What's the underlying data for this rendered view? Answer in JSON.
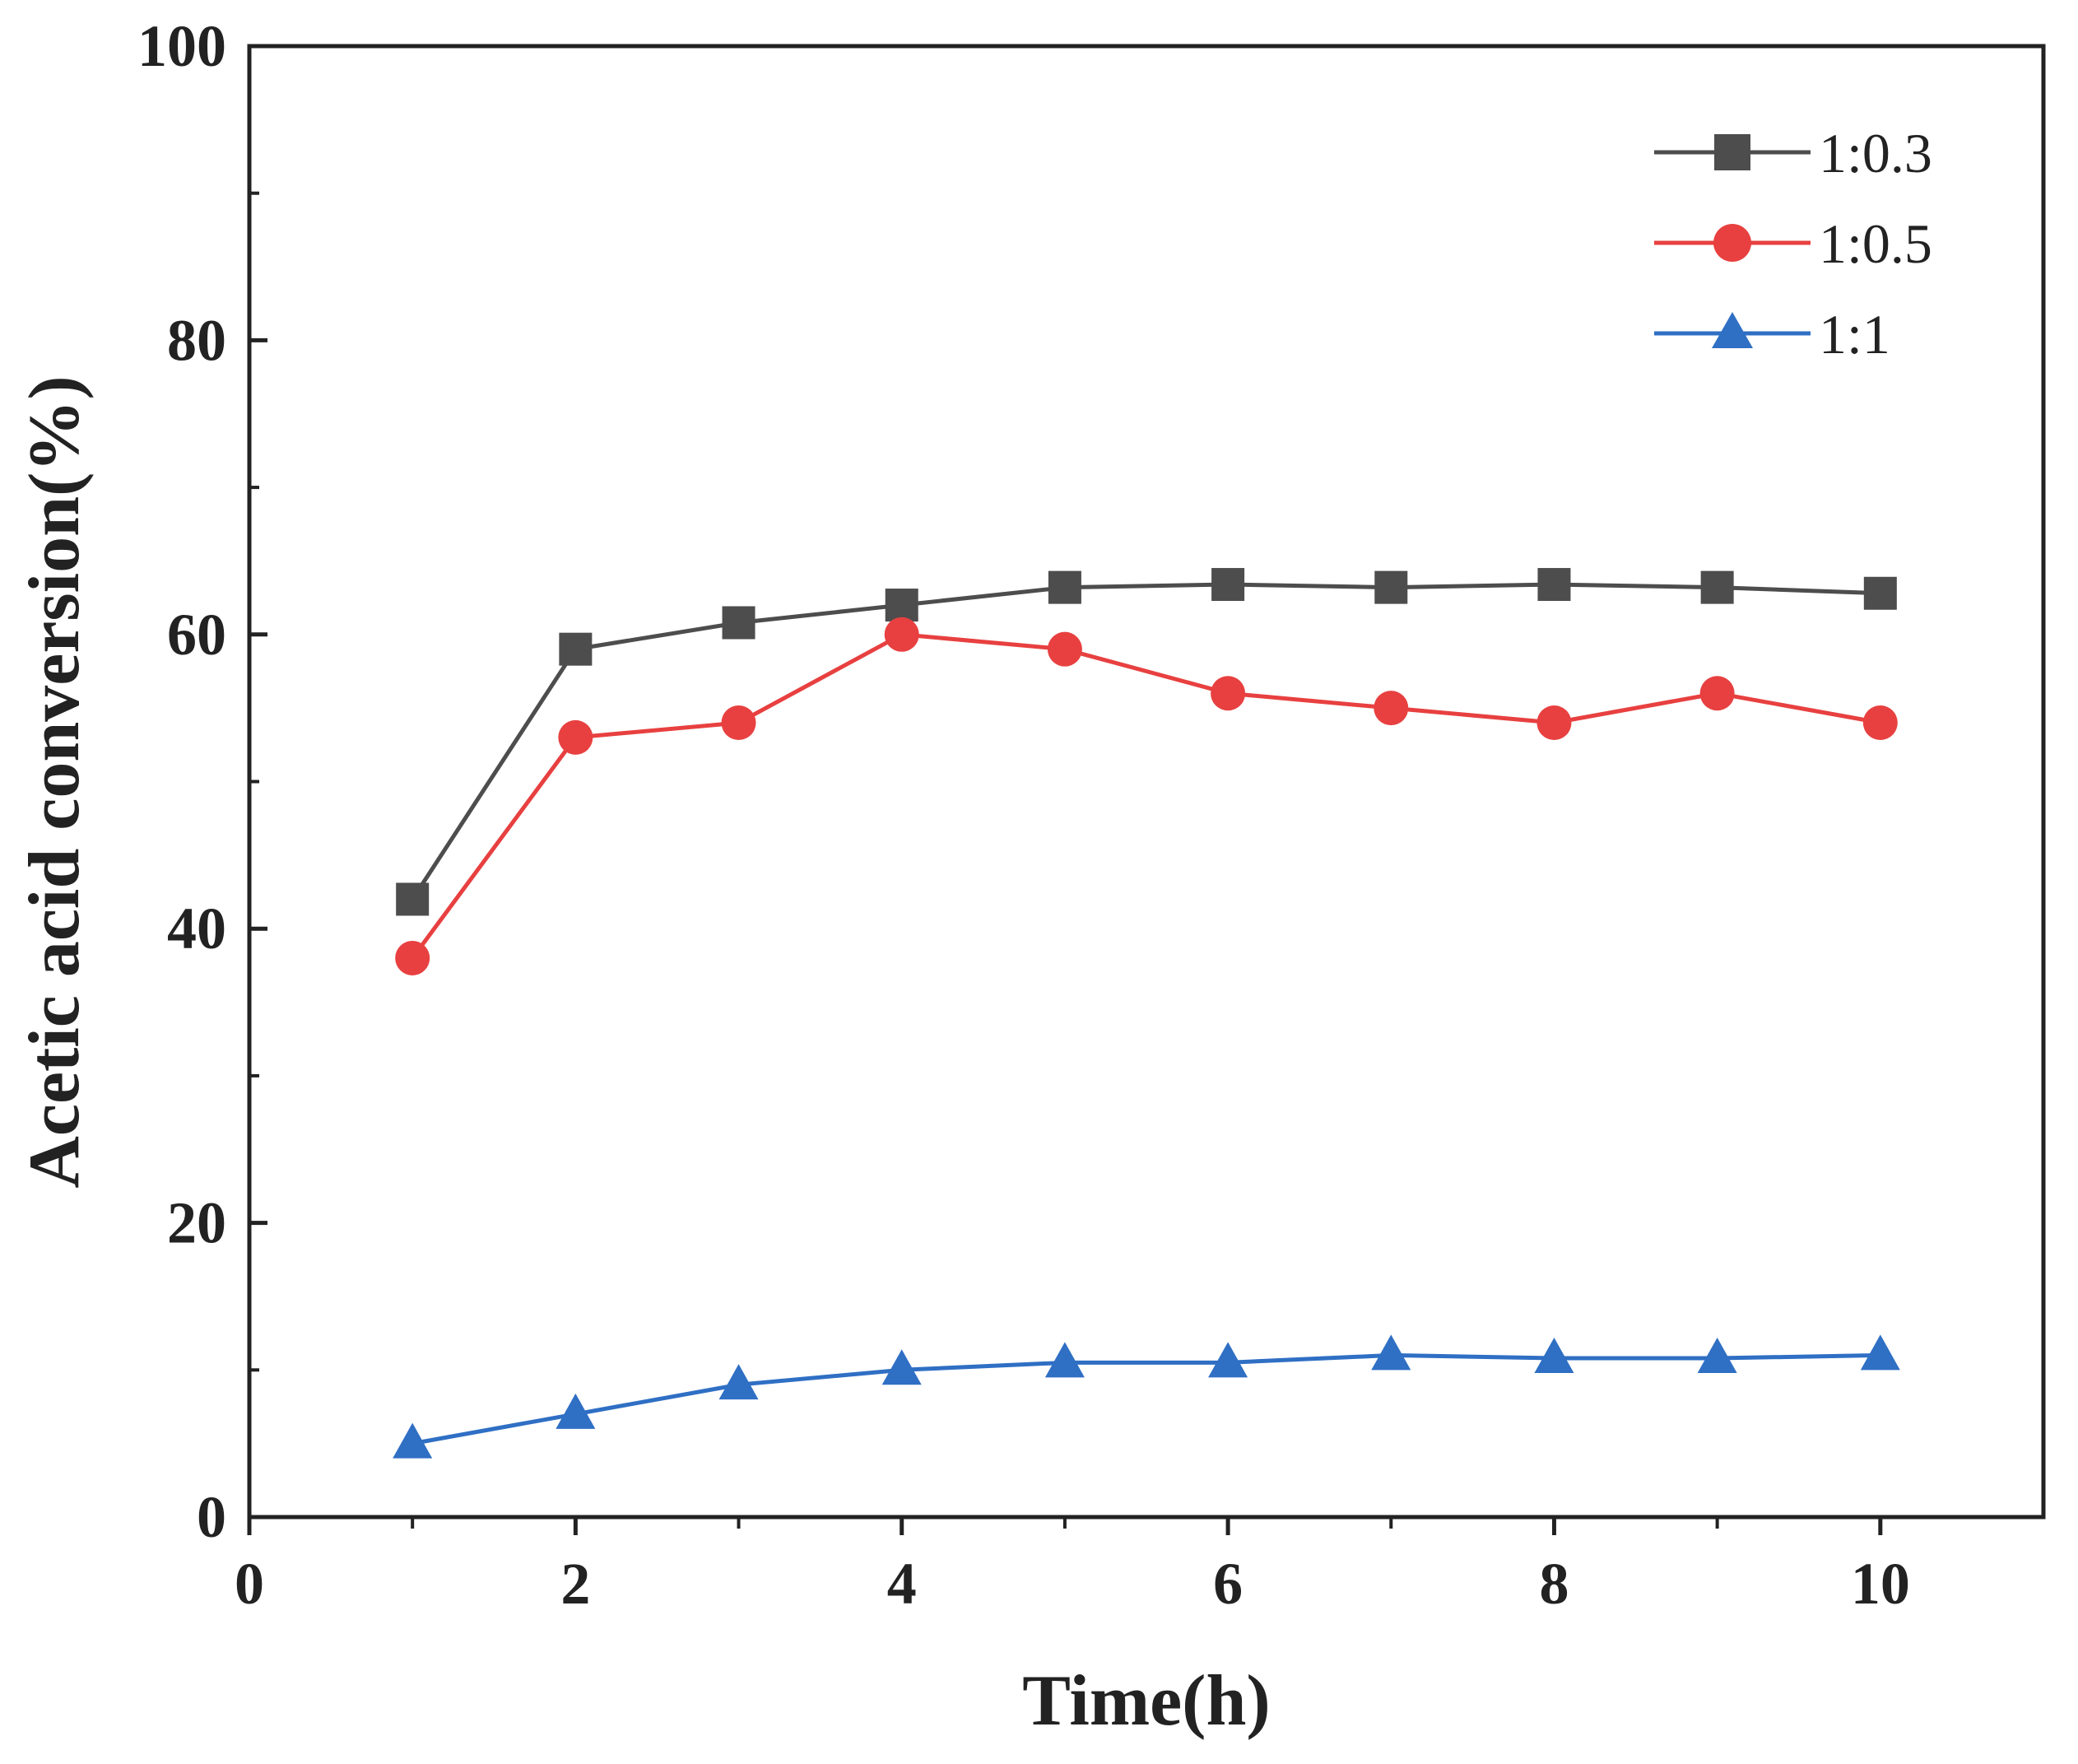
{
  "chart_data": {
    "type": "line",
    "title": "",
    "xlabel": "Time(h)",
    "ylabel": "Acetic acid conversion(%)",
    "xlim": [
      0,
      11
    ],
    "ylim": [
      0,
      100
    ],
    "x": [
      1,
      2,
      3,
      4,
      5,
      6,
      7,
      8,
      9,
      10
    ],
    "xticks": [
      "0",
      "2",
      "4",
      "6",
      "8",
      "10"
    ],
    "yticks": [
      "0",
      "20",
      "40",
      "60",
      "80",
      "100"
    ],
    "grid": false,
    "legend_position": "top-right",
    "series": [
      {
        "name": "1:0.3",
        "marker": "square",
        "color": "#4d4d4d",
        "values": [
          42,
          59,
          60.8,
          62,
          63.2,
          63.4,
          63.2,
          63.4,
          63.2,
          62.8
        ]
      },
      {
        "name": "1:0.5",
        "marker": "circle",
        "color": "#e84040",
        "values": [
          38,
          53,
          54,
          60,
          59,
          56,
          55,
          54,
          56,
          54
        ]
      },
      {
        "name": "1:1",
        "marker": "triangle",
        "color": "#2f6fc4",
        "values": [
          5,
          7,
          9,
          10,
          10.5,
          10.5,
          11,
          10.8,
          10.8,
          11
        ]
      }
    ]
  }
}
